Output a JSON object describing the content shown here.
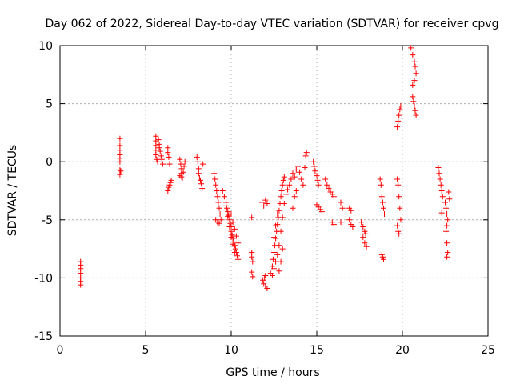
{
  "chart_data": {
    "type": "scatter",
    "title": "Day 062 of 2022, Sidereal Day-to-day VTEC variation (SDTVAR) for receiver cpvg",
    "xlabel": "GPS time / hours",
    "ylabel": "SDTVAR / TECUs",
    "xlim": [
      0,
      25
    ],
    "ylim": [
      -15,
      10
    ],
    "xticks": [
      0,
      5,
      10,
      15,
      20,
      25
    ],
    "yticks": [
      -15,
      -10,
      -5,
      0,
      5,
      10
    ],
    "xtick_labels": [
      "0",
      "5",
      "10",
      "15",
      "20",
      "25"
    ],
    "ytick_labels": [
      "-15",
      "-10",
      "-5",
      "0",
      "5",
      "10"
    ],
    "grid": true,
    "marker": "+",
    "color": "#ff0000",
    "series": [
      {
        "name": "SDTVAR",
        "points": [
          [
            1.2,
            -8.6
          ],
          [
            1.2,
            -8.9
          ],
          [
            1.2,
            -9.2
          ],
          [
            1.2,
            -9.6
          ],
          [
            1.2,
            -10.0
          ],
          [
            1.2,
            -10.3
          ],
          [
            1.2,
            -10.6
          ],
          [
            3.5,
            2.0
          ],
          [
            3.5,
            1.4
          ],
          [
            3.5,
            1.0
          ],
          [
            3.5,
            0.6
          ],
          [
            3.5,
            0.3
          ],
          [
            3.5,
            0.0
          ],
          [
            3.5,
            -0.7
          ],
          [
            3.5,
            -1.1
          ],
          [
            3.55,
            -0.8
          ],
          [
            5.6,
            2.2
          ],
          [
            5.6,
            1.8
          ],
          [
            5.6,
            1.4
          ],
          [
            5.6,
            1.0
          ],
          [
            5.6,
            0.6
          ],
          [
            5.65,
            0.2
          ],
          [
            5.7,
            0.0
          ],
          [
            5.75,
            1.9
          ],
          [
            5.8,
            1.5
          ],
          [
            5.8,
            1.2
          ],
          [
            5.85,
            0.9
          ],
          [
            5.9,
            0.5
          ],
          [
            5.95,
            0.2
          ],
          [
            6.0,
            -0.2
          ],
          [
            6.3,
            1.2
          ],
          [
            6.3,
            0.8
          ],
          [
            6.35,
            0.4
          ],
          [
            6.4,
            -0.2
          ],
          [
            6.3,
            -2.5
          ],
          [
            6.35,
            -2.2
          ],
          [
            6.4,
            -2.0
          ],
          [
            6.45,
            -1.8
          ],
          [
            6.5,
            -1.6
          ],
          [
            7.0,
            0.2
          ],
          [
            7.05,
            -0.2
          ],
          [
            7.1,
            -0.6
          ],
          [
            7.1,
            -1.0
          ],
          [
            7.15,
            -1.4
          ],
          [
            7.2,
            -0.9
          ],
          [
            7.25,
            -0.4
          ],
          [
            7.3,
            0.0
          ],
          [
            7.0,
            -1.2
          ],
          [
            7.1,
            -1.3
          ],
          [
            8.0,
            0.4
          ],
          [
            8.05,
            0.0
          ],
          [
            8.1,
            -0.6
          ],
          [
            8.1,
            -1.0
          ],
          [
            8.15,
            -1.4
          ],
          [
            8.2,
            -1.6
          ],
          [
            8.25,
            -1.9
          ],
          [
            8.3,
            -2.3
          ],
          [
            8.35,
            -0.2
          ],
          [
            9.0,
            -1.0
          ],
          [
            9.05,
            -1.5
          ],
          [
            9.1,
            -2.0
          ],
          [
            9.15,
            -2.5
          ],
          [
            9.2,
            -3.0
          ],
          [
            9.25,
            -3.5
          ],
          [
            9.3,
            -4.0
          ],
          [
            9.35,
            -4.5
          ],
          [
            9.4,
            -5.0
          ],
          [
            9.1,
            -5.0
          ],
          [
            9.2,
            -5.2
          ],
          [
            9.3,
            -5.3
          ],
          [
            9.5,
            -2.5
          ],
          [
            9.6,
            -3.0
          ],
          [
            9.7,
            -3.5
          ],
          [
            9.75,
            -4.0
          ],
          [
            9.8,
            -4.3
          ],
          [
            9.85,
            -4.6
          ],
          [
            9.9,
            -5.0
          ],
          [
            9.95,
            -5.3
          ],
          [
            10.0,
            -5.6
          ],
          [
            10.0,
            -6.0
          ],
          [
            10.05,
            -6.3
          ],
          [
            10.1,
            -6.6
          ],
          [
            10.15,
            -6.9
          ],
          [
            10.2,
            -7.2
          ],
          [
            10.25,
            -7.5
          ],
          [
            10.3,
            -7.8
          ],
          [
            10.35,
            -8.1
          ],
          [
            10.4,
            -8.4
          ],
          [
            9.7,
            -3.8
          ],
          [
            9.8,
            -4.7
          ],
          [
            9.9,
            -5.6
          ],
          [
            10.0,
            -6.5
          ],
          [
            10.1,
            -7.1
          ],
          [
            10.2,
            -7.8
          ],
          [
            10.0,
            -4.5
          ],
          [
            10.1,
            -5.2
          ],
          [
            10.2,
            -5.8
          ],
          [
            10.3,
            -6.4
          ],
          [
            10.4,
            -7.0
          ],
          [
            11.2,
            -4.8
          ],
          [
            11.2,
            -7.8
          ],
          [
            11.2,
            -8.2
          ],
          [
            11.25,
            -8.6
          ],
          [
            11.2,
            -9.5
          ],
          [
            11.25,
            -9.9
          ],
          [
            11.8,
            -3.5
          ],
          [
            11.9,
            -3.8
          ],
          [
            12.0,
            -3.3
          ],
          [
            12.1,
            -3.6
          ],
          [
            11.85,
            -10.2
          ],
          [
            11.9,
            -10.5
          ],
          [
            12.0,
            -10.7
          ],
          [
            12.1,
            -10.9
          ],
          [
            12.0,
            -9.8
          ],
          [
            11.95,
            -10.0
          ],
          [
            12.3,
            -9.6
          ],
          [
            12.4,
            -9.0
          ],
          [
            12.45,
            -8.4
          ],
          [
            12.5,
            -7.8
          ],
          [
            12.55,
            -7.2
          ],
          [
            12.6,
            -6.6
          ],
          [
            12.65,
            -6.0
          ],
          [
            12.7,
            -5.4
          ],
          [
            12.75,
            -4.8
          ],
          [
            12.8,
            -4.2
          ],
          [
            12.85,
            -3.6
          ],
          [
            12.9,
            -3.0
          ],
          [
            12.95,
            -2.5
          ],
          [
            13.0,
            -2.0
          ],
          [
            13.05,
            -1.6
          ],
          [
            13.1,
            -1.3
          ],
          [
            12.4,
            -9.8
          ],
          [
            12.5,
            -9.2
          ],
          [
            12.6,
            -8.6
          ],
          [
            12.7,
            -8.0
          ],
          [
            12.8,
            -7.2
          ],
          [
            12.9,
            -6.0
          ],
          [
            13.0,
            -4.8
          ],
          [
            13.1,
            -3.6
          ],
          [
            13.2,
            -2.8
          ],
          [
            13.3,
            -2.4
          ],
          [
            12.5,
            -6.5
          ],
          [
            12.6,
            -5.5
          ],
          [
            12.7,
            -4.5
          ],
          [
            12.8,
            -9.4
          ],
          [
            12.9,
            -8.6
          ],
          [
            13.0,
            -7.5
          ],
          [
            13.4,
            -2.0
          ],
          [
            13.5,
            -1.5
          ],
          [
            13.6,
            -1.0
          ],
          [
            13.7,
            -1.3
          ],
          [
            13.8,
            -0.7
          ],
          [
            13.9,
            -0.4
          ],
          [
            14.0,
            -0.9
          ],
          [
            14.1,
            -1.5
          ],
          [
            14.2,
            -2.0
          ],
          [
            14.3,
            -0.5
          ],
          [
            14.35,
            0.5
          ],
          [
            14.4,
            0.8
          ],
          [
            13.6,
            -4.0
          ],
          [
            13.7,
            -3.0
          ],
          [
            13.8,
            -2.5
          ],
          [
            14.8,
            0.0
          ],
          [
            14.85,
            -0.4
          ],
          [
            14.9,
            -0.8
          ],
          [
            15.0,
            -1.2
          ],
          [
            15.05,
            -1.6
          ],
          [
            15.1,
            -2.0
          ],
          [
            15.0,
            -3.7
          ],
          [
            15.1,
            -3.9
          ],
          [
            15.2,
            -4.1
          ],
          [
            15.3,
            -4.3
          ],
          [
            15.5,
            -1.5
          ],
          [
            15.6,
            -2.0
          ],
          [
            15.7,
            -2.3
          ],
          [
            15.8,
            -2.6
          ],
          [
            15.9,
            -2.8
          ],
          [
            16.0,
            -3.0
          ],
          [
            15.9,
            -5.2
          ],
          [
            16.0,
            -5.4
          ],
          [
            16.4,
            -3.5
          ],
          [
            16.5,
            -4.0
          ],
          [
            16.4,
            -5.2
          ],
          [
            16.9,
            -4.0
          ],
          [
            17.0,
            -4.2
          ],
          [
            16.9,
            -5.0
          ],
          [
            17.0,
            -5.4
          ],
          [
            17.1,
            -5.6
          ],
          [
            17.6,
            -5.2
          ],
          [
            17.7,
            -5.6
          ],
          [
            17.8,
            -6.0
          ],
          [
            17.7,
            -6.5
          ],
          [
            17.8,
            -7.0
          ],
          [
            17.9,
            -7.3
          ],
          [
            17.85,
            -6.2
          ],
          [
            18.7,
            -1.5
          ],
          [
            18.75,
            -2.0
          ],
          [
            18.8,
            -3.0
          ],
          [
            18.85,
            -3.5
          ],
          [
            18.9,
            -4.0
          ],
          [
            18.95,
            -4.5
          ],
          [
            18.8,
            -8.0
          ],
          [
            18.85,
            -8.2
          ],
          [
            18.9,
            -8.4
          ],
          [
            19.7,
            3.0
          ],
          [
            19.75,
            3.5
          ],
          [
            19.8,
            4.0
          ],
          [
            19.85,
            4.5
          ],
          [
            19.9,
            4.8
          ],
          [
            19.7,
            -1.5
          ],
          [
            19.75,
            -2.0
          ],
          [
            19.8,
            -3.0
          ],
          [
            19.85,
            -4.0
          ],
          [
            19.9,
            -5.0
          ],
          [
            19.7,
            -5.5
          ],
          [
            19.75,
            -6.0
          ],
          [
            19.8,
            -6.2
          ],
          [
            20.5,
            9.8
          ],
          [
            20.6,
            9.2
          ],
          [
            20.7,
            8.6
          ],
          [
            20.75,
            8.2
          ],
          [
            20.8,
            7.6
          ],
          [
            20.7,
            7.0
          ],
          [
            20.6,
            6.6
          ],
          [
            20.65,
            5.2
          ],
          [
            20.7,
            4.8
          ],
          [
            20.75,
            4.4
          ],
          [
            20.8,
            4.0
          ],
          [
            20.6,
            5.6
          ],
          [
            22.1,
            -0.5
          ],
          [
            22.15,
            -1.0
          ],
          [
            22.2,
            -1.5
          ],
          [
            22.25,
            -2.0
          ],
          [
            22.3,
            -2.5
          ],
          [
            22.35,
            -3.0
          ],
          [
            22.3,
            -4.4
          ],
          [
            22.5,
            -3.5
          ],
          [
            22.55,
            -4.0
          ],
          [
            22.6,
            -4.5
          ],
          [
            22.65,
            -5.0
          ],
          [
            22.6,
            -5.5
          ],
          [
            22.55,
            -6.0
          ],
          [
            22.6,
            -7.0
          ],
          [
            22.65,
            -7.8
          ],
          [
            22.6,
            -8.2
          ],
          [
            22.7,
            -2.6
          ],
          [
            22.75,
            -3.2
          ]
        ]
      }
    ]
  }
}
